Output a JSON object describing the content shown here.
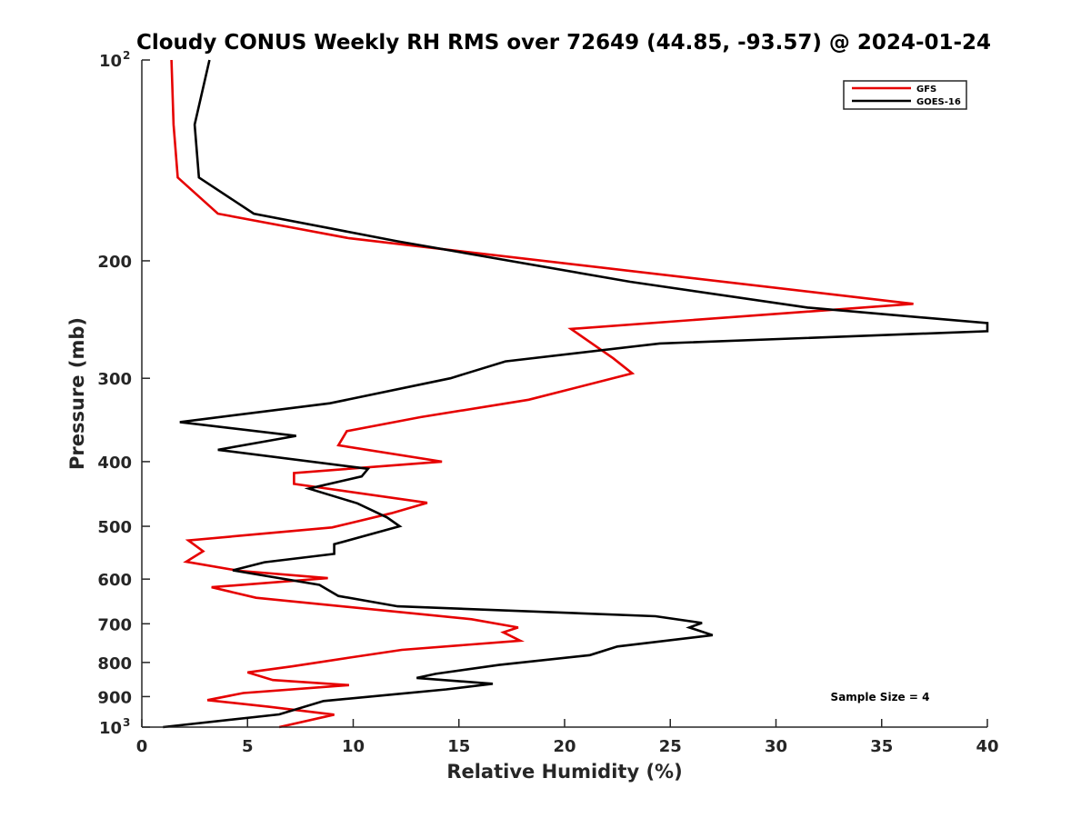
{
  "chart_data": {
    "type": "line",
    "title": "Cloudy CONUS Weekly RH RMS over 72649 (44.85, -93.57) @ 2024-01-24",
    "xlabel": "Relative Humidity (%)",
    "ylabel": "Pressure (mb)",
    "xlim": [
      0,
      40
    ],
    "ylim": [
      100,
      1000
    ],
    "y_scale": "log",
    "y_reversed": true,
    "grid": false,
    "legend_position": "top-right",
    "x_ticks": [
      0,
      5,
      10,
      15,
      20,
      25,
      30,
      35,
      40
    ],
    "y_ticks": [
      {
        "value": 100,
        "label": "10",
        "sup": "2"
      },
      {
        "value": 200,
        "label": "200",
        "sup": ""
      },
      {
        "value": 300,
        "label": "300",
        "sup": ""
      },
      {
        "value": 400,
        "label": "400",
        "sup": ""
      },
      {
        "value": 500,
        "label": "500",
        "sup": ""
      },
      {
        "value": 600,
        "label": "600",
        "sup": ""
      },
      {
        "value": 700,
        "label": "700",
        "sup": ""
      },
      {
        "value": 800,
        "label": "800",
        "sup": ""
      },
      {
        "value": 900,
        "label": "900",
        "sup": ""
      },
      {
        "value": 1000,
        "label": "10",
        "sup": "3"
      }
    ],
    "series": [
      {
        "name": "GFS",
        "color": "#e60000",
        "points": [
          [
            1.4,
            100
          ],
          [
            1.5,
            125
          ],
          [
            1.7,
            150
          ],
          [
            3.6,
            170
          ],
          [
            9.8,
            185
          ],
          [
            36.5,
            232
          ],
          [
            20.3,
            253
          ],
          [
            22.3,
            280
          ],
          [
            23.2,
            295
          ],
          [
            18.3,
            323
          ],
          [
            13.2,
            343
          ],
          [
            9.7,
            360
          ],
          [
            9.3,
            378
          ],
          [
            14.2,
            400
          ],
          [
            7.2,
            416
          ],
          [
            7.2,
            432
          ],
          [
            13.5,
            461
          ],
          [
            11.8,
            478
          ],
          [
            9.0,
            502
          ],
          [
            2.2,
            525
          ],
          [
            2.9,
            545
          ],
          [
            2.1,
            565
          ],
          [
            4.6,
            583
          ],
          [
            8.8,
            598
          ],
          [
            3.3,
            617
          ],
          [
            5.4,
            640
          ],
          [
            15.6,
            689
          ],
          [
            17.8,
            709
          ],
          [
            17.1,
            721
          ],
          [
            17.9,
            742
          ],
          [
            12.3,
            766
          ],
          [
            9.8,
            787
          ],
          [
            7.1,
            811
          ],
          [
            5.0,
            828
          ],
          [
            6.2,
            850
          ],
          [
            9.8,
            865
          ],
          [
            4.8,
            889
          ],
          [
            3.1,
            911
          ],
          [
            6.0,
            932
          ],
          [
            9.1,
            958
          ],
          [
            6.5,
            1000
          ]
        ]
      },
      {
        "name": "GOES-16",
        "color": "#000000",
        "points": [
          [
            3.2,
            100
          ],
          [
            2.5,
            125
          ],
          [
            2.7,
            150
          ],
          [
            5.3,
            170
          ],
          [
            12.1,
            187
          ],
          [
            23.1,
            215
          ],
          [
            31.5,
            235
          ],
          [
            40.0,
            248
          ],
          [
            40.0,
            255
          ],
          [
            24.5,
            266
          ],
          [
            17.2,
            283
          ],
          [
            14.6,
            300
          ],
          [
            8.9,
            327
          ],
          [
            1.8,
            349
          ],
          [
            7.3,
            366
          ],
          [
            3.6,
            384
          ],
          [
            10.7,
            410
          ],
          [
            10.4,
            421
          ],
          [
            7.9,
            439
          ],
          [
            10.2,
            462
          ],
          [
            11.6,
            485
          ],
          [
            12.2,
            500
          ],
          [
            9.1,
            532
          ],
          [
            9.1,
            550
          ],
          [
            5.8,
            566
          ],
          [
            4.3,
            582
          ],
          [
            8.4,
            612
          ],
          [
            9.3,
            636
          ],
          [
            12.1,
            659
          ],
          [
            24.3,
            682
          ],
          [
            26.5,
            698
          ],
          [
            25.9,
            709
          ],
          [
            27.0,
            728
          ],
          [
            22.5,
            757
          ],
          [
            21.2,
            780
          ],
          [
            16.9,
            807
          ],
          [
            13.9,
            832
          ],
          [
            13.0,
            844
          ],
          [
            16.6,
            861
          ],
          [
            14.4,
            878
          ],
          [
            8.6,
            914
          ],
          [
            6.5,
            957
          ],
          [
            1.0,
            1000
          ]
        ]
      }
    ],
    "annotation": "Sample Size = 4"
  }
}
